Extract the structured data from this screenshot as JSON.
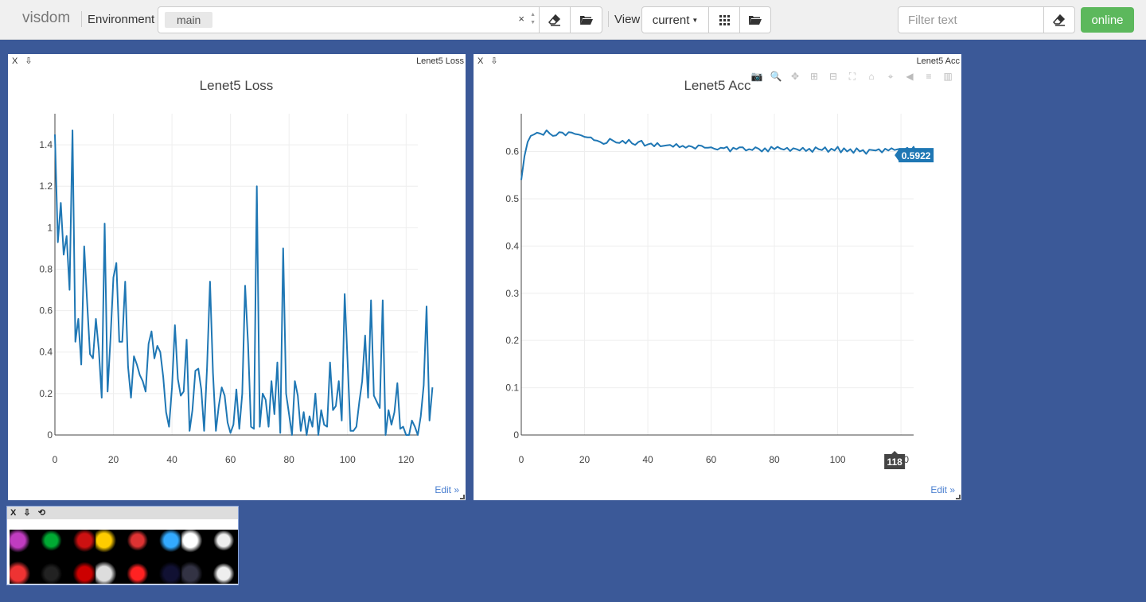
{
  "header": {
    "brand": "visdom",
    "env_label": "Environment",
    "env_value": "main",
    "env_clear": "×",
    "view_label": "View",
    "view_value": "current",
    "filter_placeholder": "Filter text",
    "status": "online"
  },
  "icons": {
    "eraser": "eraser-icon",
    "folder": "folder-open-icon",
    "grid": "grid-icon",
    "camera": "camera-icon",
    "zoom": "zoom-icon",
    "pan": "pan-icon"
  },
  "panes": {
    "loss": {
      "close": "X",
      "download": "⇩",
      "corner_title": "Lenet5 Loss",
      "edit": "Edit »"
    },
    "acc": {
      "close": "X",
      "download": "⇩",
      "corner_title": "Lenet5 Acc",
      "edit": "Edit »",
      "hover_y": "0.5922",
      "hover_x": "118"
    },
    "images": {
      "close": "X",
      "download": "⇩",
      "refresh": "⟲"
    }
  },
  "colors": {
    "background": "#3b5998",
    "line": "#1f77b4",
    "online": "#5cb85c"
  },
  "chart_data": [
    {
      "type": "line",
      "title": "Lenet5 Loss",
      "xlim": [
        0,
        124
      ],
      "ylim": [
        0,
        1.55
      ],
      "xticks": [
        0,
        20,
        40,
        60,
        80,
        100,
        120
      ],
      "yticks": [
        0,
        0.2,
        0.4,
        0.6,
        0.8,
        1,
        1.2,
        1.4
      ],
      "grid": true,
      "series": [
        {
          "values": [
            1.45,
            0.93,
            1.12,
            0.87,
            0.96,
            0.7,
            1.47,
            0.45,
            0.56,
            0.34,
            0.91,
            0.64,
            0.39,
            0.37,
            0.56,
            0.41,
            0.18,
            1.02,
            0.21,
            0.47,
            0.76,
            0.83,
            0.45,
            0.45,
            0.74,
            0.33,
            0.18,
            0.38,
            0.34,
            0.29,
            0.26,
            0.21,
            0.44,
            0.5,
            0.37,
            0.43,
            0.4,
            0.28,
            0.11,
            0.04,
            0.23,
            0.53,
            0.27,
            0.19,
            0.21,
            0.46,
            0.02,
            0.12,
            0.31,
            0.32,
            0.22,
            0.02,
            0.33,
            0.74,
            0.3,
            0.02,
            0.14,
            0.23,
            0.19,
            0.06,
            0.01,
            0.05,
            0.22,
            0.03,
            0.2,
            0.72,
            0.44,
            0.04,
            0.03,
            1.2,
            0.04,
            0.2,
            0.17,
            0.04,
            0.26,
            0.1,
            0.35,
            0.01,
            0.9,
            0.2,
            0.1,
            0.0,
            0.26,
            0.19,
            0.02,
            0.11,
            0.0,
            0.09,
            0.04,
            0.2,
            0.0,
            0.12,
            0.05,
            0.04,
            0.35,
            0.12,
            0.14,
            0.26,
            0.07,
            0.68,
            0.36,
            0.02,
            0.02,
            0.04,
            0.16,
            0.26,
            0.48,
            0.18,
            0.65,
            0.19,
            0.16,
            0.13,
            0.65,
            0.0,
            0.12,
            0.05,
            0.11,
            0.25,
            0.03,
            0.04,
            0.0,
            0.0,
            0.07,
            0.04,
            0.0,
            0.09,
            0.24,
            0.62,
            0.07,
            0.23
          ]
        }
      ]
    },
    {
      "type": "line",
      "title": "Lenet5 Acc",
      "xlim": [
        0,
        124
      ],
      "ylim": [
        0,
        0.68
      ],
      "xticks": [
        0,
        20,
        40,
        60,
        80,
        100,
        120
      ],
      "yticks": [
        0,
        0.1,
        0.2,
        0.3,
        0.4,
        0.5,
        0.6
      ],
      "grid": true,
      "series": [
        {
          "values": [
            0.54,
            0.59,
            0.62,
            0.633,
            0.636,
            0.64,
            0.638,
            0.635,
            0.645,
            0.638,
            0.633,
            0.634,
            0.641,
            0.64,
            0.634,
            0.641,
            0.64,
            0.637,
            0.636,
            0.634,
            0.631,
            0.63,
            0.63,
            0.624,
            0.623,
            0.62,
            0.616,
            0.618,
            0.627,
            0.623,
            0.619,
            0.618,
            0.623,
            0.617,
            0.625,
            0.617,
            0.614,
            0.62,
            0.623,
            0.612,
            0.615,
            0.617,
            0.611,
            0.618,
            0.611,
            0.612,
            0.613,
            0.614,
            0.61,
            0.616,
            0.609,
            0.612,
            0.608,
            0.612,
            0.61,
            0.606,
            0.613,
            0.612,
            0.608,
            0.608,
            0.609,
            0.606,
            0.604,
            0.608,
            0.607,
            0.61,
            0.6,
            0.608,
            0.605,
            0.609,
            0.609,
            0.602,
            0.605,
            0.603,
            0.609,
            0.606,
            0.6,
            0.607,
            0.6,
            0.61,
            0.605,
            0.61,
            0.606,
            0.604,
            0.608,
            0.601,
            0.607,
            0.605,
            0.602,
            0.608,
            0.601,
            0.606,
            0.599,
            0.609,
            0.605,
            0.603,
            0.609,
            0.599,
            0.606,
            0.602,
            0.61,
            0.598,
            0.607,
            0.6,
            0.605,
            0.597,
            0.607,
            0.6,
            0.603,
            0.595,
            0.604,
            0.603,
            0.602,
            0.605,
            0.598,
            0.606,
            0.602,
            0.607,
            0.603,
            0.605,
            0.604,
            0.603,
            0.608,
            0.601,
            0.61,
            0.5922
          ]
        }
      ]
    }
  ]
}
